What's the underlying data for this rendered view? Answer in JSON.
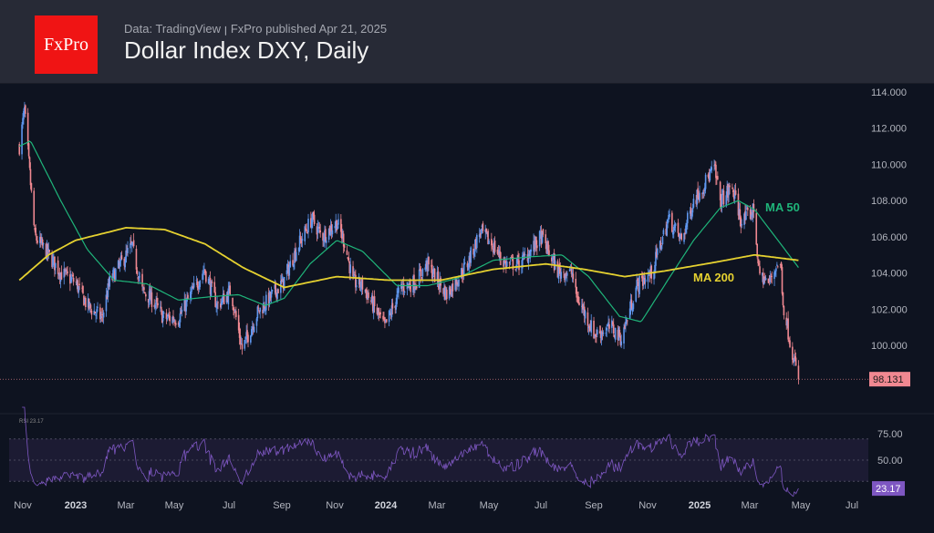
{
  "header": {
    "logo": "FxPro",
    "subtitle": "Data: TradingView  ꞁ  FxPro published Apr 21, 2025",
    "title": "Dollar Index DXY, Daily"
  },
  "chart_data": {
    "type": "candlestick",
    "title": "Dollar Index DXY, Daily",
    "ylim": [
      98,
      114
    ],
    "y_ticks": [
      "114.000",
      "112.000",
      "110.000",
      "108.000",
      "106.000",
      "104.000",
      "102.000",
      "100.000"
    ],
    "last_price": "98.131",
    "x_ticks": [
      "Nov",
      "2023",
      "Mar",
      "May",
      "Jul",
      "Sep",
      "Nov",
      "2024",
      "Mar",
      "May",
      "Jul",
      "Sep",
      "Nov",
      "2025",
      "Mar",
      "May",
      "Jul"
    ],
    "price_path": [
      [
        "2022-10-28",
        111
      ],
      [
        "2022-11-03",
        113
      ],
      [
        "2022-11-15",
        106
      ],
      [
        "2022-12-01",
        105
      ],
      [
        "2022-12-15",
        104
      ],
      [
        "2023-01-01",
        103.5
      ],
      [
        "2023-01-15",
        102.2
      ],
      [
        "2023-02-01",
        101.5
      ],
      [
        "2023-02-10",
        103.5
      ],
      [
        "2023-03-08",
        105.5
      ],
      [
        "2023-03-20",
        103
      ],
      [
        "2023-04-01",
        102.5
      ],
      [
        "2023-04-14",
        101.5
      ],
      [
        "2023-05-01",
        101.5
      ],
      [
        "2023-05-31",
        104.2
      ],
      [
        "2023-06-15",
        102.2
      ],
      [
        "2023-07-01",
        103
      ],
      [
        "2023-07-14",
        99.8
      ],
      [
        "2023-08-01",
        101.8
      ],
      [
        "2023-08-31",
        103.5
      ],
      [
        "2023-09-15",
        105.3
      ],
      [
        "2023-10-03",
        107
      ],
      [
        "2023-10-15",
        106
      ],
      [
        "2023-11-01",
        106.8
      ],
      [
        "2023-11-10",
        105.7
      ],
      [
        "2023-11-20",
        103.5
      ],
      [
        "2023-12-01",
        103.3
      ],
      [
        "2023-12-27",
        101
      ],
      [
        "2024-01-15",
        103.2
      ],
      [
        "2024-02-01",
        103.5
      ],
      [
        "2024-02-14",
        104.5
      ],
      [
        "2024-03-08",
        102.8
      ],
      [
        "2024-04-01",
        104.5
      ],
      [
        "2024-04-16",
        106.3
      ],
      [
        "2024-05-01",
        105.5
      ],
      [
        "2024-05-15",
        104.5
      ],
      [
        "2024-06-01",
        104.5
      ],
      [
        "2024-06-26",
        106
      ],
      [
        "2024-07-15",
        104.1
      ],
      [
        "2024-08-01",
        104
      ],
      [
        "2024-08-05",
        102.8
      ],
      [
        "2024-08-27",
        100.6
      ],
      [
        "2024-09-15",
        101
      ],
      [
        "2024-09-27",
        100.4
      ],
      [
        "2024-10-15",
        103.3
      ],
      [
        "2024-11-01",
        104
      ],
      [
        "2024-11-21",
        107
      ],
      [
        "2024-12-06",
        105.8
      ],
      [
        "2024-12-20",
        108
      ],
      [
        "2025-01-13",
        109.8
      ],
      [
        "2025-01-20",
        108
      ],
      [
        "2025-02-03",
        108.7
      ],
      [
        "2025-02-14",
        106.8
      ],
      [
        "2025-02-28",
        107.5
      ],
      [
        "2025-03-06",
        104
      ],
      [
        "2025-03-17",
        103.4
      ],
      [
        "2025-03-27",
        104.5
      ],
      [
        "2025-04-01",
        104.2
      ],
      [
        "2025-04-03",
        102.3
      ],
      [
        "2025-04-10",
        100.5
      ],
      [
        "2025-04-15",
        99.4
      ],
      [
        "2025-04-21",
        98.131
      ]
    ],
    "series": [
      {
        "name": "MA 50",
        "color": "#1fb57a",
        "path": [
          [
            "2022-10-28",
            111
          ],
          [
            "2022-11-10",
            111.3
          ],
          [
            "2022-12-15",
            108
          ],
          [
            "2023-01-15",
            105.3
          ],
          [
            "2023-02-15",
            103.6
          ],
          [
            "2023-03-25",
            103.4
          ],
          [
            "2023-05-01",
            102.5
          ],
          [
            "2023-06-10",
            102.7
          ],
          [
            "2023-07-10",
            102.8
          ],
          [
            "2023-08-10",
            102.2
          ],
          [
            "2023-09-01",
            102.6
          ],
          [
            "2023-10-01",
            104.5
          ],
          [
            "2023-11-01",
            105.8
          ],
          [
            "2023-12-01",
            105.2
          ],
          [
            "2024-01-10",
            103.3
          ],
          [
            "2024-02-15",
            103.3
          ],
          [
            "2024-03-20",
            103.7
          ],
          [
            "2024-05-01",
            104.7
          ],
          [
            "2024-06-15",
            104.9
          ],
          [
            "2024-07-20",
            105
          ],
          [
            "2024-08-20",
            103.8
          ],
          [
            "2024-09-25",
            101.6
          ],
          [
            "2024-10-20",
            101.3
          ],
          [
            "2024-11-20",
            103.6
          ],
          [
            "2024-12-20",
            105.8
          ],
          [
            "2025-01-20",
            107.6
          ],
          [
            "2025-02-10",
            108
          ],
          [
            "2025-03-01",
            107.5
          ],
          [
            "2025-03-25",
            106
          ],
          [
            "2025-04-21",
            104.3
          ]
        ]
      },
      {
        "name": "MA 200",
        "color": "#e5d130",
        "path": [
          [
            "2022-10-28",
            103.6
          ],
          [
            "2022-12-01",
            105
          ],
          [
            "2023-01-01",
            105.8
          ],
          [
            "2023-03-01",
            106.5
          ],
          [
            "2023-04-15",
            106.4
          ],
          [
            "2023-06-01",
            105.6
          ],
          [
            "2023-07-15",
            104.3
          ],
          [
            "2023-09-01",
            103.2
          ],
          [
            "2023-11-01",
            103.8
          ],
          [
            "2024-01-01",
            103.6
          ],
          [
            "2024-03-01",
            103.6
          ],
          [
            "2024-05-01",
            104.2
          ],
          [
            "2024-07-01",
            104.5
          ],
          [
            "2024-08-15",
            104.2
          ],
          [
            "2024-10-01",
            103.8
          ],
          [
            "2024-11-15",
            104.1
          ],
          [
            "2025-01-15",
            104.6
          ],
          [
            "2025-03-01",
            105.0
          ],
          [
            "2025-04-21",
            104.7
          ]
        ]
      }
    ],
    "rsi": {
      "label": "RSI",
      "value": "23.17",
      "ticks": [
        "75.00",
        "50.00"
      ],
      "band": [
        30,
        70
      ],
      "color": "#7e57c2"
    },
    "colors": {
      "up": "#5f97ef",
      "down": "#f08891"
    }
  }
}
